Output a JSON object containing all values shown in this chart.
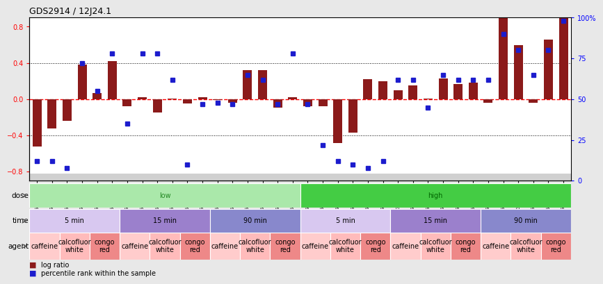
{
  "title": "GDS2914 / 12J24.1",
  "sample_labels": [
    "GSM91440",
    "GSM91893",
    "GSM91428",
    "GSM91881",
    "GSM91434",
    "GSM91887",
    "GSM91443",
    "GSM91890",
    "GSM91430",
    "GSM91878",
    "GSM91436",
    "GSM91883",
    "GSM91438",
    "GSM91889",
    "GSM91426",
    "GSM91876",
    "GSM91432",
    "GSM91884",
    "GSM91439",
    "GSM91892",
    "GSM91427",
    "GSM91880",
    "GSM91433",
    "GSM91886",
    "GSM91442",
    "GSM91891",
    "GSM91429",
    "GSM91877",
    "GSM91435",
    "GSM91882",
    "GSM91437",
    "GSM91888",
    "GSM91444",
    "GSM91894",
    "GSM91431",
    "GSM91885"
  ],
  "log_ratio": [
    -0.52,
    -0.32,
    -0.24,
    0.38,
    0.07,
    0.42,
    -0.08,
    0.02,
    -0.15,
    0.01,
    -0.05,
    0.02,
    -0.01,
    -0.04,
    0.32,
    0.32,
    -0.09,
    0.02,
    -0.08,
    -0.08,
    -0.48,
    -0.37,
    0.22,
    0.2,
    0.1,
    0.15,
    0.01,
    0.23,
    0.17,
    0.18,
    -0.04,
    0.95,
    0.6,
    -0.04,
    0.66,
    0.98
  ],
  "percentile": [
    12,
    12,
    8,
    72,
    55,
    78,
    35,
    78,
    78,
    62,
    10,
    47,
    48,
    47,
    65,
    62,
    47,
    78,
    47,
    22,
    12,
    10,
    8,
    12,
    62,
    62,
    45,
    65,
    62,
    62,
    62,
    90,
    80,
    65,
    80,
    98
  ],
  "ylim": [
    -0.9,
    0.9
  ],
  "yticks_left": [
    -0.8,
    -0.4,
    0.0,
    0.4,
    0.8
  ],
  "yticks_right": [
    0,
    25,
    50,
    75,
    100
  ],
  "hlines": [
    -0.4,
    0.0,
    0.4
  ],
  "bar_color": "#8B1A1A",
  "dot_color": "#1C1CCD",
  "bg_color": "#ffffff",
  "outer_bg": "#e8e8e8",
  "tick_label_bg": "#d0d0d0",
  "dose_segments": [
    {
      "label": "low",
      "start": 0,
      "end": 18,
      "color": "#aae8aa",
      "text_color": "#228822"
    },
    {
      "label": "high",
      "start": 18,
      "end": 36,
      "color": "#44cc44",
      "text_color": "#006600"
    }
  ],
  "time_segments": [
    {
      "label": "5 min",
      "start": 0,
      "end": 6,
      "color": "#d8c8f0"
    },
    {
      "label": "15 min",
      "start": 6,
      "end": 12,
      "color": "#9b80cc"
    },
    {
      "label": "90 min",
      "start": 12,
      "end": 18,
      "color": "#8888cc"
    },
    {
      "label": "5 min",
      "start": 18,
      "end": 24,
      "color": "#d8c8f0"
    },
    {
      "label": "15 min",
      "start": 24,
      "end": 30,
      "color": "#9b80cc"
    },
    {
      "label": "90 min",
      "start": 30,
      "end": 36,
      "color": "#8888cc"
    }
  ],
  "agent_segments": [
    {
      "label": "caffeine",
      "start": 0,
      "end": 2,
      "color": "#ffcccc"
    },
    {
      "label": "calcofluor\nwhite",
      "start": 2,
      "end": 4,
      "color": "#ffbbbb"
    },
    {
      "label": "congo\nred",
      "start": 4,
      "end": 6,
      "color": "#ee8888"
    },
    {
      "label": "caffeine",
      "start": 6,
      "end": 8,
      "color": "#ffcccc"
    },
    {
      "label": "calcofluor\nwhite",
      "start": 8,
      "end": 10,
      "color": "#ffbbbb"
    },
    {
      "label": "congo\nred",
      "start": 10,
      "end": 12,
      "color": "#ee8888"
    },
    {
      "label": "caffeine",
      "start": 12,
      "end": 14,
      "color": "#ffcccc"
    },
    {
      "label": "calcofluor\nwhite",
      "start": 14,
      "end": 16,
      "color": "#ffbbbb"
    },
    {
      "label": "congo\nred",
      "start": 16,
      "end": 18,
      "color": "#ee8888"
    },
    {
      "label": "caffeine",
      "start": 18,
      "end": 20,
      "color": "#ffcccc"
    },
    {
      "label": "calcofluor\nwhite",
      "start": 20,
      "end": 22,
      "color": "#ffbbbb"
    },
    {
      "label": "congo\nred",
      "start": 22,
      "end": 24,
      "color": "#ee8888"
    },
    {
      "label": "caffeine",
      "start": 24,
      "end": 26,
      "color": "#ffcccc"
    },
    {
      "label": "calcofluor\nwhite",
      "start": 26,
      "end": 28,
      "color": "#ffbbbb"
    },
    {
      "label": "congo\nred",
      "start": 28,
      "end": 30,
      "color": "#ee8888"
    },
    {
      "label": "caffeine",
      "start": 30,
      "end": 32,
      "color": "#ffcccc"
    },
    {
      "label": "calcofluor\nwhite",
      "start": 32,
      "end": 34,
      "color": "#ffbbbb"
    },
    {
      "label": "congo\nred",
      "start": 34,
      "end": 36,
      "color": "#ee8888"
    }
  ],
  "legend_items": [
    {
      "label": "log ratio",
      "color": "#8B1A1A"
    },
    {
      "label": "percentile rank within the sample",
      "color": "#1C1CCD"
    }
  ]
}
